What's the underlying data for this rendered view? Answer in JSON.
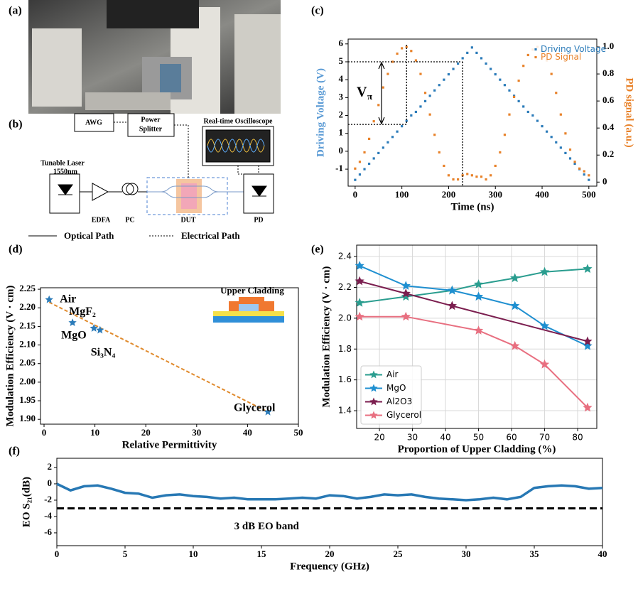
{
  "panel_labels": [
    "(a)",
    "(b)",
    "(c)",
    "(d)",
    "(e)",
    "(f)"
  ],
  "diagram": {
    "awg": "AWG",
    "splitter": [
      "Power",
      "Splitter"
    ],
    "oscilloscope": "Real-time Oscilloscope",
    "laser": [
      "Tunable Laser",
      "1550nm"
    ],
    "edfa": "EDFA",
    "pc": "PC",
    "dut": "DUT",
    "pd": "PD",
    "legend": [
      "Optical Path",
      "Electrical Path"
    ]
  },
  "chart_data": [
    {
      "type": "scatter",
      "xlabel": "Time (ns)",
      "ylabel": "Driving Voltage (V)",
      "y2label": "PD signal (a.u.)",
      "ylabel_color": "#5b9bd5",
      "y2label_color": "#e8822a",
      "x": [
        0,
        10,
        20,
        30,
        40,
        50,
        60,
        70,
        80,
        90,
        100,
        110,
        120,
        130,
        140,
        150,
        160,
        170,
        180,
        190,
        200,
        210,
        220,
        230,
        240,
        250,
        260,
        270,
        280,
        290,
        300,
        310,
        320,
        330,
        340,
        350,
        360,
        370,
        380,
        390,
        400,
        410,
        420,
        430,
        440,
        450,
        460,
        470,
        480,
        490,
        500
      ],
      "series": [
        {
          "name": "Driving Voltage",
          "color": "#2b7bb9",
          "marker": "square",
          "values": [
            -1.6,
            -1.3,
            -1.0,
            -0.7,
            -0.4,
            -0.1,
            0.2,
            0.5,
            0.8,
            1.1,
            1.4,
            1.7,
            2.0,
            2.2,
            2.5,
            2.8,
            3.1,
            3.4,
            3.7,
            4.0,
            4.3,
            4.6,
            4.9,
            5.2,
            5.5,
            5.8,
            5.5,
            5.2,
            4.9,
            4.6,
            4.3,
            4.0,
            3.7,
            3.4,
            3.1,
            2.8,
            2.5,
            2.2,
            2.0,
            1.7,
            1.4,
            1.1,
            0.8,
            0.5,
            0.2,
            -0.1,
            -0.4,
            -0.7,
            -1.0,
            -1.3,
            -1.6
          ]
        },
        {
          "name": "PD Signal",
          "color": "#e8822a",
          "marker": "square",
          "axis": "y2",
          "values": [
            0.1,
            0.15,
            0.22,
            0.32,
            0.45,
            0.57,
            0.7,
            0.8,
            0.89,
            0.95,
            0.99,
            1.0,
            0.97,
            0.9,
            0.8,
            0.66,
            0.5,
            0.35,
            0.22,
            0.12,
            0.05,
            0.02,
            0.02,
            0.05,
            0.06,
            0.05,
            0.04,
            0.04,
            0.02,
            0.05,
            0.12,
            0.22,
            0.35,
            0.5,
            0.63,
            0.75,
            0.86,
            0.94,
            0.98,
            1.0,
            0.97,
            0.9,
            0.8,
            0.66,
            0.5,
            0.36,
            0.24,
            0.15,
            0.1,
            0.08,
            0.05
          ]
        }
      ],
      "xlim": [
        -15,
        517
      ],
      "xticks": [
        0,
        100,
        200,
        300,
        400,
        500
      ],
      "ylim": [
        -1.95,
        6.27
      ],
      "yticks": [
        -1,
        0,
        1,
        2,
        3,
        4,
        5,
        6
      ],
      "y2lim": [
        -0.03,
        1.058
      ],
      "y2ticks": [
        0,
        0.2,
        0.4,
        0.6,
        0.8,
        {
          "value": 1,
          "label": "1.0"
        }
      ],
      "legend": "upper right",
      "reference_lines": {
        "y": [
          5,
          1.5
        ],
        "x": [
          230,
          110
        ]
      },
      "annotation": {
        "text": "V",
        "subscript": "π"
      }
    },
    {
      "type": "scatter",
      "xlabel": "Relative Permittivity",
      "ylabel": "Modulation Efficiency (V · cm)",
      "x": [
        1,
        5.6,
        9.8,
        11,
        44
      ],
      "point_labels": [
        "Air",
        "MgF₂",
        "MgO",
        "Si₃N₄",
        "Glycerol"
      ],
      "series": [
        {
          "color": "#2b7bb9",
          "marker": "star",
          "values": [
            2.222,
            2.16,
            2.145,
            2.14,
            1.92
          ]
        }
      ],
      "trend_line": {
        "color": "#e08a2c",
        "x": [
          1,
          44
        ],
        "y": [
          2.215,
          1.92
        ]
      },
      "inset_label": "Upper Cladding",
      "xlim": [
        -0.7,
        50
      ],
      "xticks": [
        0,
        10,
        20,
        30,
        40,
        50
      ],
      "ylim": [
        1.887,
        2.254
      ],
      "yticks": [
        {
          "value": 1.9,
          "label": "1.90"
        },
        1.95,
        {
          "value": 2,
          "label": "2.00"
        },
        2.05,
        {
          "value": 2.1,
          "label": "2.10"
        },
        2.15,
        {
          "value": 2.2,
          "label": "2.20"
        },
        2.25
      ]
    },
    {
      "type": "line",
      "xlabel": "Proportion of Upper Cladding (%)",
      "ylabel": "Modulation Efficiency (V · cm)",
      "series": [
        {
          "name": "Air",
          "color": "#2a9d8f",
          "marker": "star",
          "x": [
            14,
            28,
            42,
            50,
            61,
            70,
            83
          ],
          "values": [
            2.1,
            2.14,
            2.18,
            2.22,
            2.26,
            2.3,
            2.32
          ]
        },
        {
          "name": "MgO",
          "color": "#1f8fd0",
          "marker": "star",
          "x": [
            14,
            28,
            42,
            50,
            61,
            70,
            83
          ],
          "values": [
            2.34,
            2.21,
            2.18,
            2.14,
            2.08,
            1.95,
            1.82
          ]
        },
        {
          "name": "Al2O3",
          "color": "#7b1e4f",
          "marker": "star",
          "x": [
            14,
            28,
            42,
            83
          ],
          "values": [
            2.24,
            2.16,
            2.08,
            1.85
          ]
        },
        {
          "name": "Glycerol",
          "color": "#e86f80",
          "marker": "star",
          "x": [
            14,
            28,
            50,
            61,
            70,
            83
          ],
          "values": [
            2.01,
            2.01,
            1.92,
            1.82,
            1.7,
            1.42
          ]
        }
      ],
      "xlim": [
        13.1,
        85.8
      ],
      "xticks": [
        20,
        30,
        40,
        50,
        60,
        70,
        80
      ],
      "ylim": [
        1.285,
        2.474
      ],
      "yticks": [
        1.4,
        1.6,
        1.8,
        {
          "value": 2,
          "label": "2.0"
        },
        2.2,
        2.4
      ],
      "grid": true,
      "legend": "lower left"
    },
    {
      "type": "line",
      "xlabel": "Frequency (GHz)",
      "ylabel": "EO S₂₁(dB)",
      "x": [
        0,
        1,
        2,
        3,
        4,
        5,
        6,
        7,
        8,
        9,
        10,
        11,
        12,
        13,
        14,
        15,
        16,
        17,
        18,
        19,
        20,
        21,
        22,
        23,
        24,
        25,
        26,
        27,
        28,
        29,
        30,
        31,
        32,
        33,
        34,
        35,
        36,
        37,
        38,
        39,
        40
      ],
      "series": [
        {
          "color": "#2778b4",
          "values": [
            0,
            -0.8,
            -0.3,
            -0.2,
            -0.6,
            -1.1,
            -1.2,
            -1.7,
            -1.4,
            -1.3,
            -1.5,
            -1.6,
            -1.8,
            -1.7,
            -1.9,
            -1.9,
            -1.9,
            -1.8,
            -1.7,
            -1.8,
            -1.4,
            -1.5,
            -1.8,
            -1.6,
            -1.3,
            -1.4,
            -1.3,
            -1.6,
            -1.8,
            -1.9,
            -2.0,
            -1.9,
            -1.7,
            -1.9,
            -1.6,
            -0.5,
            -0.3,
            -0.2,
            -0.3,
            -0.6,
            -0.5
          ]
        }
      ],
      "reference_line": {
        "value": -3,
        "label": "3 dB EO band"
      },
      "xlim": [
        0,
        40
      ],
      "xticks": [
        0,
        5,
        10,
        15,
        20,
        25,
        30,
        35,
        40
      ],
      "ylim": [
        -7.57,
        3.13
      ],
      "yticks": [
        -6,
        -4,
        -2,
        0,
        2
      ]
    }
  ]
}
